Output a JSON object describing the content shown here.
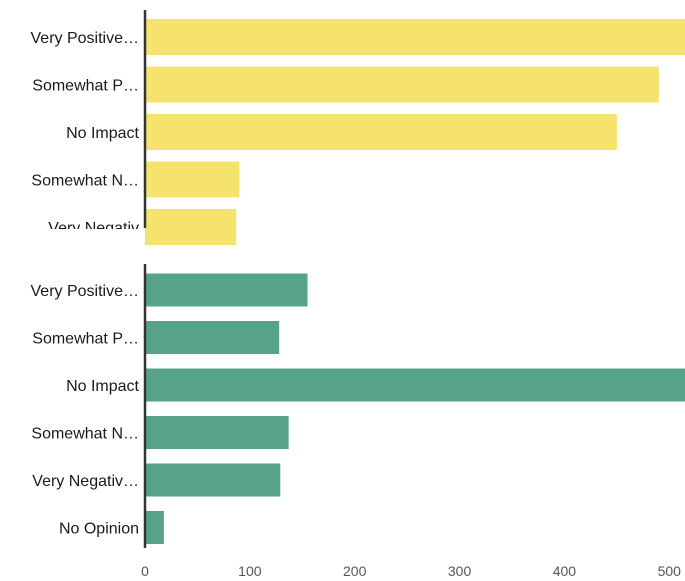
{
  "chart_data": [
    {
      "type": "bar",
      "orientation": "horizontal",
      "categories": [
        "Very Positive…",
        "Somewhat P…",
        "No Impact",
        "Somewhat N…",
        "Very Negativ"
      ],
      "values": [
        515,
        490,
        450,
        90,
        87
      ],
      "color": "#f6e36e",
      "xlim": [
        0,
        515
      ],
      "grid": false
    },
    {
      "type": "bar",
      "orientation": "horizontal",
      "categories": [
        "Very Positive…",
        "Somewhat P…",
        "No Impact",
        "Somewhat N…",
        "Very Negativ…",
        "No Opinion"
      ],
      "values": [
        155,
        128,
        515,
        137,
        129,
        18
      ],
      "color": "#56a38a",
      "xlim": [
        0,
        515
      ],
      "grid": false
    }
  ],
  "x_axis": {
    "ticks": [
      "0",
      "100",
      "200",
      "300",
      "400",
      "500"
    ],
    "tick_values": [
      0,
      100,
      200,
      300,
      400,
      500
    ],
    "range": [
      0,
      515
    ]
  }
}
